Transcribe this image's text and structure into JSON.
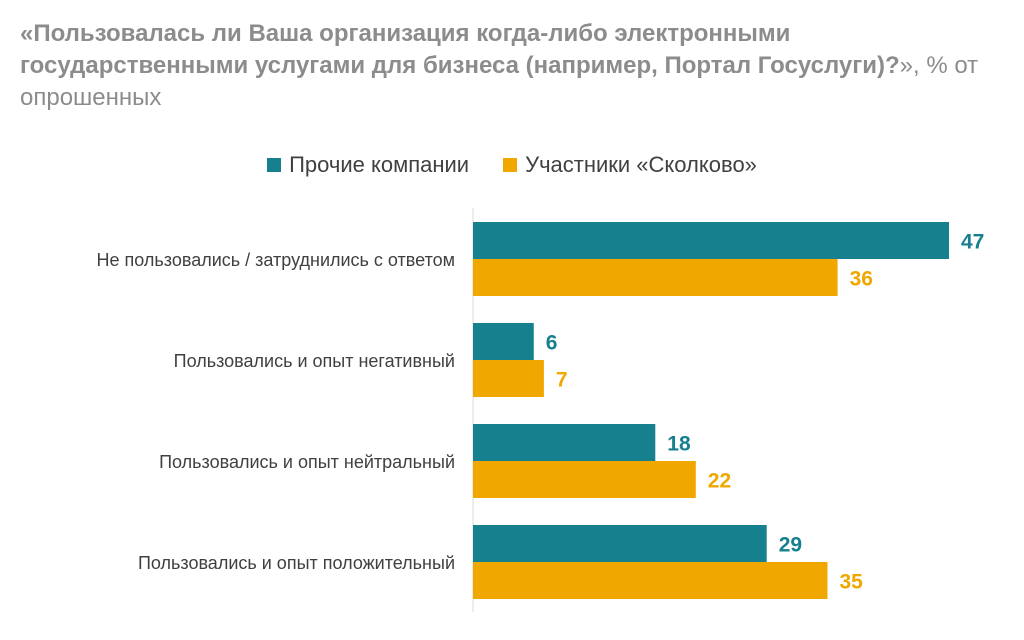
{
  "title": {
    "bold": "«Пользовалась ли Ваша организация когда-либо электронными государственными услугами для бизнеса (например, Портал Госуслуги)?",
    "rest": "», % от опрошенных"
  },
  "colors": {
    "others": "#17808f",
    "skolkovo": "#f0a800"
  },
  "chart_data": {
    "type": "bar",
    "orientation": "horizontal",
    "title": "«Пользовалась ли Ваша организация когда-либо электронными государственными услугами для бизнеса (например, Портал Госуслуги)?», % от опрошенных",
    "categories": [
      "Не пользовались / затруднились с ответом",
      "Пользовались и опыт негативный",
      "Пользовались и опыт нейтральный",
      "Пользовались и опыт положительный"
    ],
    "series": [
      {
        "name": "Прочие компании",
        "values": [
          47,
          6,
          18,
          29
        ]
      },
      {
        "name": "Участники «Сколково»",
        "values": [
          36,
          7,
          22,
          35
        ]
      }
    ],
    "xlim": [
      0,
      47
    ],
    "legend": "top",
    "grid": false
  }
}
